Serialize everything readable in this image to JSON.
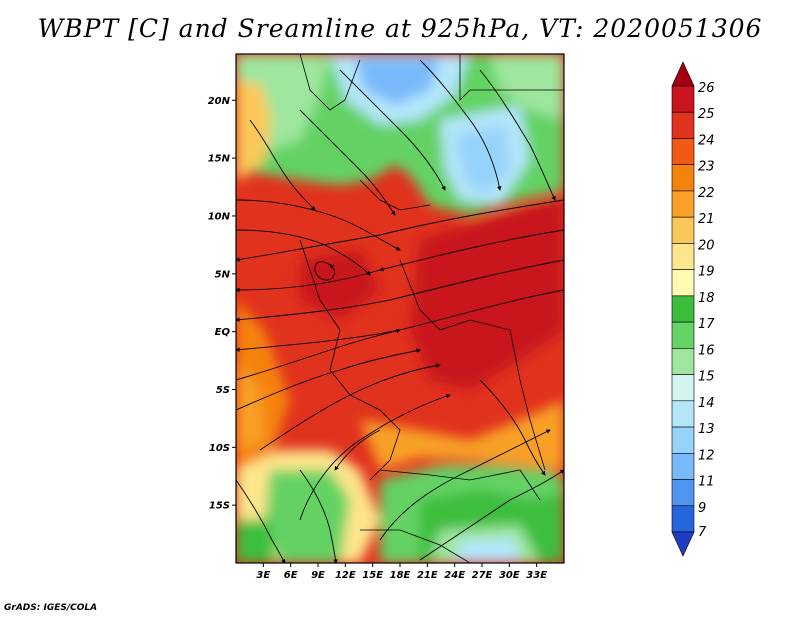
{
  "title": "WBPT [C] and Sreamline at 925hPa, VT: 2020051306",
  "credit": "GrADS: IGES/COLA",
  "map": {
    "lon_range": [
      0,
      36
    ],
    "lat_range": [
      -20,
      24
    ],
    "lat_ticks": [
      {
        "value": 20,
        "label": "20N"
      },
      {
        "value": 15,
        "label": "15N"
      },
      {
        "value": 10,
        "label": "10N"
      },
      {
        "value": 5,
        "label": "5N"
      },
      {
        "value": 0,
        "label": "EQ"
      },
      {
        "value": -5,
        "label": "5S"
      },
      {
        "value": -10,
        "label": "10S"
      },
      {
        "value": -15,
        "label": "15S"
      }
    ],
    "lon_ticks": [
      {
        "value": 3,
        "label": "3E"
      },
      {
        "value": 6,
        "label": "6E"
      },
      {
        "value": 9,
        "label": "9E"
      },
      {
        "value": 12,
        "label": "12E"
      },
      {
        "value": 15,
        "label": "15E"
      },
      {
        "value": 18,
        "label": "18E"
      },
      {
        "value": 21,
        "label": "21E"
      },
      {
        "value": 24,
        "label": "24E"
      },
      {
        "value": 27,
        "label": "27E"
      },
      {
        "value": 30,
        "label": "30E"
      },
      {
        "value": 33,
        "label": "33E"
      }
    ]
  },
  "colorbar": {
    "levels": [
      "26",
      "25",
      "24",
      "23",
      "22",
      "21",
      "20",
      "19",
      "18",
      "17",
      "16",
      "15",
      "14",
      "13",
      "12",
      "11",
      "9",
      "7"
    ],
    "colors": [
      "#a50010",
      "#c8141e",
      "#e1321e",
      "#f05a14",
      "#f5820a",
      "#f8a028",
      "#fac85a",
      "#fde68c",
      "#fffab4",
      "#3cbe3c",
      "#64d264",
      "#9ee69e",
      "#d2f5f0",
      "#b4e6fa",
      "#96d2fa",
      "#78b9fa",
      "#5096f0",
      "#2864dc",
      "#1e3cc8"
    ]
  }
}
